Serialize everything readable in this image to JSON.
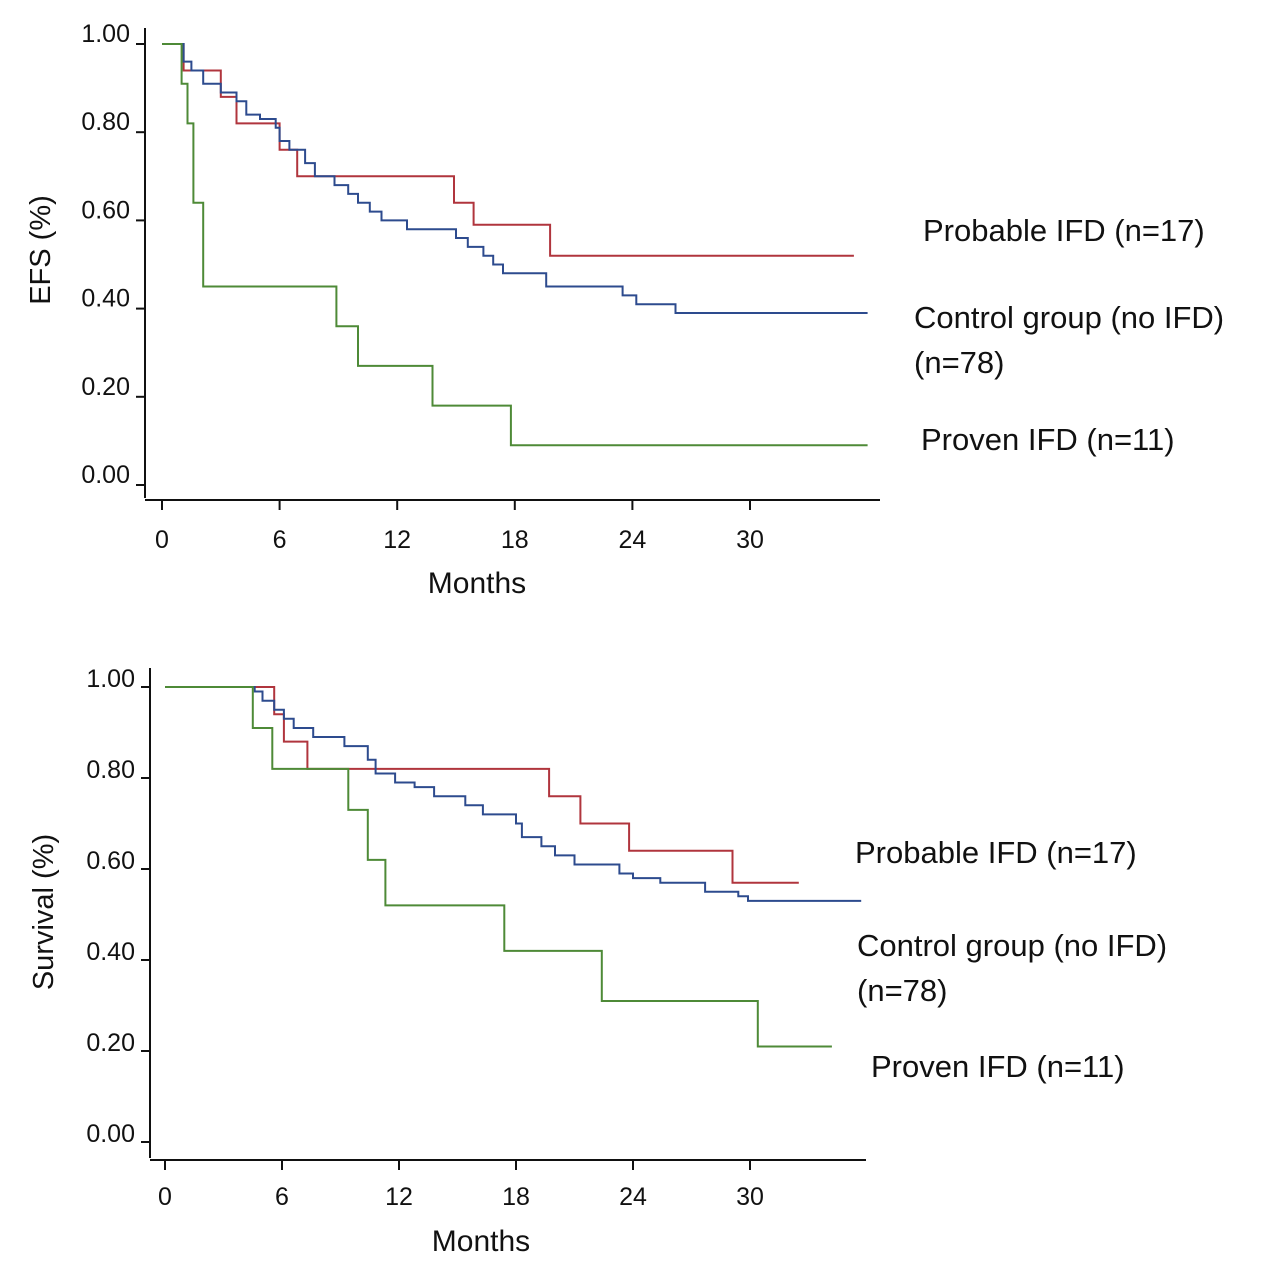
{
  "chart_data": [
    {
      "type": "line",
      "title": "",
      "xlabel": "Months",
      "ylabel": "EFS (%)",
      "xlim": [
        0,
        36
      ],
      "ylim": [
        0,
        1
      ],
      "x_ticks": [
        0,
        6,
        12,
        18,
        24,
        30
      ],
      "y_ticks": [
        0,
        0.2,
        0.4,
        0.6,
        0.8,
        1.0
      ],
      "x_tick_labels": [
        "0",
        "6",
        "12",
        "18",
        "24",
        "30"
      ],
      "y_tick_labels": [
        "0.00",
        "0.20",
        "0.40",
        "0.60",
        "0.80",
        "1.00"
      ],
      "grid": false,
      "series": [
        {
          "name": "Probable IFD (n=17)",
          "color": "#b0353d",
          "points": [
            [
              0,
              1.0
            ],
            [
              1.1,
              1.0
            ],
            [
              1.1,
              0.94
            ],
            [
              3.0,
              0.94
            ],
            [
              3.0,
              0.88
            ],
            [
              3.8,
              0.88
            ],
            [
              3.8,
              0.82
            ],
            [
              6.0,
              0.82
            ],
            [
              6.0,
              0.76
            ],
            [
              6.9,
              0.76
            ],
            [
              6.9,
              0.7
            ],
            [
              14.9,
              0.7
            ],
            [
              14.9,
              0.64
            ],
            [
              15.9,
              0.64
            ],
            [
              15.9,
              0.59
            ],
            [
              19.8,
              0.59
            ],
            [
              19.8,
              0.52
            ],
            [
              35.3,
              0.52
            ]
          ]
        },
        {
          "name": "Control group (no IFD) (n=78)",
          "color": "#2d4b8e",
          "points": [
            [
              0,
              1.0
            ],
            [
              1.1,
              1.0
            ],
            [
              1.1,
              0.96
            ],
            [
              1.5,
              0.96
            ],
            [
              1.5,
              0.94
            ],
            [
              2.1,
              0.94
            ],
            [
              2.1,
              0.91
            ],
            [
              3.0,
              0.91
            ],
            [
              3.0,
              0.89
            ],
            [
              3.8,
              0.89
            ],
            [
              3.8,
              0.87
            ],
            [
              4.3,
              0.87
            ],
            [
              4.3,
              0.84
            ],
            [
              5.0,
              0.84
            ],
            [
              5.0,
              0.83
            ],
            [
              5.8,
              0.83
            ],
            [
              5.8,
              0.81
            ],
            [
              6.0,
              0.81
            ],
            [
              6.0,
              0.78
            ],
            [
              6.5,
              0.78
            ],
            [
              6.5,
              0.76
            ],
            [
              7.3,
              0.76
            ],
            [
              7.3,
              0.73
            ],
            [
              7.8,
              0.73
            ],
            [
              7.8,
              0.7
            ],
            [
              8.8,
              0.7
            ],
            [
              8.8,
              0.68
            ],
            [
              9.5,
              0.68
            ],
            [
              9.5,
              0.66
            ],
            [
              10.0,
              0.66
            ],
            [
              10.0,
              0.64
            ],
            [
              10.6,
              0.64
            ],
            [
              10.6,
              0.62
            ],
            [
              11.2,
              0.62
            ],
            [
              11.2,
              0.6
            ],
            [
              12.5,
              0.6
            ],
            [
              12.5,
              0.58
            ],
            [
              15.0,
              0.58
            ],
            [
              15.0,
              0.56
            ],
            [
              15.6,
              0.56
            ],
            [
              15.6,
              0.54
            ],
            [
              16.4,
              0.54
            ],
            [
              16.4,
              0.52
            ],
            [
              16.9,
              0.52
            ],
            [
              16.9,
              0.5
            ],
            [
              17.4,
              0.5
            ],
            [
              17.4,
              0.48
            ],
            [
              19.6,
              0.48
            ],
            [
              19.6,
              0.45
            ],
            [
              23.5,
              0.45
            ],
            [
              23.5,
              0.43
            ],
            [
              24.2,
              0.43
            ],
            [
              24.2,
              0.41
            ],
            [
              26.2,
              0.41
            ],
            [
              26.2,
              0.39
            ],
            [
              36.0,
              0.39
            ]
          ]
        },
        {
          "name": "Proven IFD (n=11)",
          "color": "#4e8a37",
          "points": [
            [
              0,
              1.0
            ],
            [
              1.0,
              1.0
            ],
            [
              1.0,
              0.91
            ],
            [
              1.3,
              0.91
            ],
            [
              1.3,
              0.82
            ],
            [
              1.6,
              0.82
            ],
            [
              1.6,
              0.64
            ],
            [
              2.1,
              0.64
            ],
            [
              2.1,
              0.45
            ],
            [
              8.9,
              0.45
            ],
            [
              8.9,
              0.36
            ],
            [
              10.0,
              0.36
            ],
            [
              10.0,
              0.27
            ],
            [
              13.8,
              0.27
            ],
            [
              13.8,
              0.18
            ],
            [
              17.8,
              0.18
            ],
            [
              17.8,
              0.09
            ],
            [
              36.0,
              0.09
            ]
          ]
        }
      ]
    },
    {
      "type": "line",
      "title": "",
      "xlabel": "Months",
      "ylabel": "Survival (%)",
      "xlim": [
        0,
        36
      ],
      "ylim": [
        0,
        1
      ],
      "x_ticks": [
        0,
        6,
        12,
        18,
        24,
        30
      ],
      "y_ticks": [
        0,
        0.2,
        0.4,
        0.6,
        0.8,
        1.0
      ],
      "x_tick_labels": [
        "0",
        "6",
        "12",
        "18",
        "24",
        "30"
      ],
      "y_tick_labels": [
        "0.00",
        "0.20",
        "0.40",
        "0.60",
        "0.80",
        "1.00"
      ],
      "grid": false,
      "series": [
        {
          "name": "Probable IFD (n=17)",
          "color": "#b0353d",
          "points": [
            [
              0,
              1.0
            ],
            [
              5.6,
              1.0
            ],
            [
              5.6,
              0.94
            ],
            [
              6.1,
              0.94
            ],
            [
              6.1,
              0.88
            ],
            [
              7.3,
              0.88
            ],
            [
              7.3,
              0.82
            ],
            [
              19.7,
              0.82
            ],
            [
              19.7,
              0.76
            ],
            [
              21.3,
              0.76
            ],
            [
              21.3,
              0.7
            ],
            [
              23.8,
              0.7
            ],
            [
              23.8,
              0.64
            ],
            [
              29.1,
              0.64
            ],
            [
              29.1,
              0.57
            ],
            [
              32.5,
              0.57
            ]
          ]
        },
        {
          "name": "Control group (no IFD) (n=78)",
          "color": "#2d4b8e",
          "points": [
            [
              0,
              1.0
            ],
            [
              4.6,
              1.0
            ],
            [
              4.6,
              0.99
            ],
            [
              5.0,
              0.99
            ],
            [
              5.0,
              0.97
            ],
            [
              5.6,
              0.97
            ],
            [
              5.6,
              0.95
            ],
            [
              6.1,
              0.95
            ],
            [
              6.1,
              0.93
            ],
            [
              6.6,
              0.93
            ],
            [
              6.6,
              0.91
            ],
            [
              7.6,
              0.91
            ],
            [
              7.6,
              0.89
            ],
            [
              9.2,
              0.89
            ],
            [
              9.2,
              0.87
            ],
            [
              10.4,
              0.87
            ],
            [
              10.4,
              0.84
            ],
            [
              10.8,
              0.84
            ],
            [
              10.8,
              0.81
            ],
            [
              11.8,
              0.81
            ],
            [
              11.8,
              0.79
            ],
            [
              12.8,
              0.79
            ],
            [
              12.8,
              0.78
            ],
            [
              13.8,
              0.78
            ],
            [
              13.8,
              0.76
            ],
            [
              15.4,
              0.76
            ],
            [
              15.4,
              0.74
            ],
            [
              16.3,
              0.74
            ],
            [
              16.3,
              0.72
            ],
            [
              18.0,
              0.72
            ],
            [
              18.0,
              0.7
            ],
            [
              18.3,
              0.7
            ],
            [
              18.3,
              0.67
            ],
            [
              19.3,
              0.67
            ],
            [
              19.3,
              0.65
            ],
            [
              20.0,
              0.65
            ],
            [
              20.0,
              0.63
            ],
            [
              21.0,
              0.63
            ],
            [
              21.0,
              0.61
            ],
            [
              23.3,
              0.61
            ],
            [
              23.3,
              0.59
            ],
            [
              24.0,
              0.59
            ],
            [
              24.0,
              0.58
            ],
            [
              25.4,
              0.58
            ],
            [
              25.4,
              0.57
            ],
            [
              27.7,
              0.57
            ],
            [
              27.7,
              0.55
            ],
            [
              29.4,
              0.55
            ],
            [
              29.4,
              0.54
            ],
            [
              29.9,
              0.54
            ],
            [
              29.9,
              0.53
            ],
            [
              35.7,
              0.53
            ]
          ]
        },
        {
          "name": "Proven IFD (n=11)",
          "color": "#4e8a37",
          "points": [
            [
              0,
              1.0
            ],
            [
              4.5,
              1.0
            ],
            [
              4.5,
              0.91
            ],
            [
              5.5,
              0.91
            ],
            [
              5.5,
              0.82
            ],
            [
              9.4,
              0.82
            ],
            [
              9.4,
              0.73
            ],
            [
              10.4,
              0.73
            ],
            [
              10.4,
              0.62
            ],
            [
              11.3,
              0.62
            ],
            [
              11.3,
              0.52
            ],
            [
              17.4,
              0.52
            ],
            [
              17.4,
              0.42
            ],
            [
              22.4,
              0.42
            ],
            [
              22.4,
              0.31
            ],
            [
              30.4,
              0.31
            ],
            [
              30.4,
              0.21
            ],
            [
              34.2,
              0.21
            ]
          ]
        }
      ]
    }
  ]
}
